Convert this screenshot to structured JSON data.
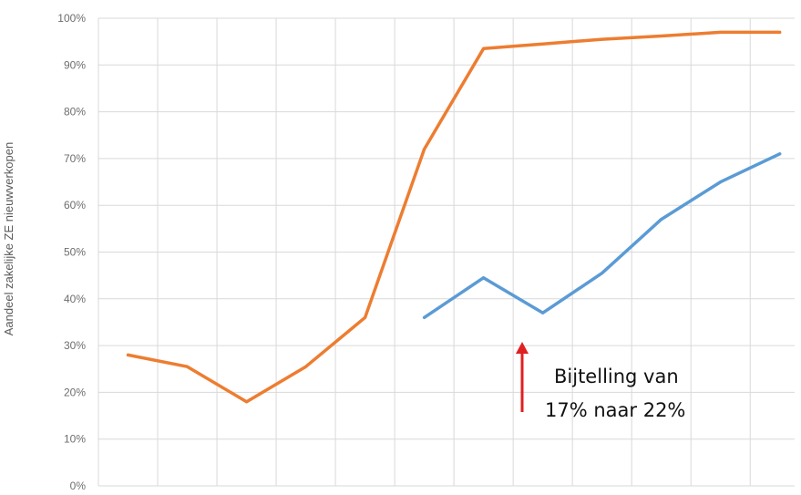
{
  "chart_data": {
    "type": "line",
    "title": "",
    "xlabel": "",
    "ylabel": "Aandeel zakelijke ZE nieuwverkopen",
    "ylim": [
      0,
      100
    ],
    "yticks": [
      "0%",
      "10%",
      "20%",
      "30%",
      "40%",
      "50%",
      "60%",
      "70%",
      "80%",
      "90%",
      "100%"
    ],
    "categories": [
      "",
      "",
      "",
      "",
      "",
      "",
      "",
      "",
      "",
      "",
      "",
      ""
    ],
    "grid": true,
    "legend": "none",
    "series": [
      {
        "color": "#5b9bd5",
        "values": [
          null,
          null,
          null,
          null,
          null,
          36,
          44.5,
          37,
          45.5,
          57,
          65,
          71
        ]
      },
      {
        "color": "#ed7d31",
        "values": [
          28,
          25.5,
          18,
          25.5,
          36,
          72,
          93.5,
          94.5,
          95.5,
          96.2,
          97,
          97
        ]
      }
    ],
    "annotation": {
      "lines": [
        "Bijtelling van",
        "17% naar 22%"
      ],
      "arrow_color": "#e02020"
    }
  }
}
